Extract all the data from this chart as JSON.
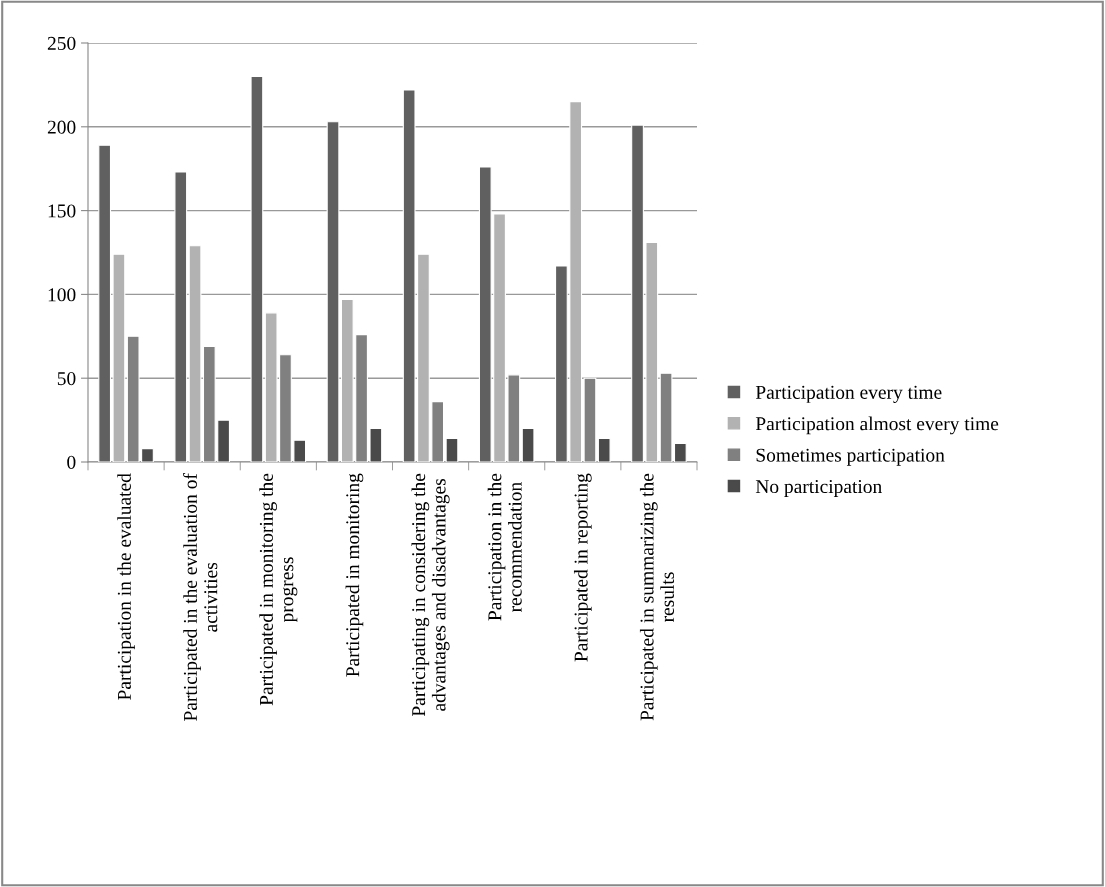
{
  "chart_data": {
    "type": "bar",
    "categories": [
      "Participation in the evaluated",
      "Participated in the evaluation of activities",
      "Participated in monitoring the progress",
      "Participated in monitoring",
      "Participating in considering the advantages and disadvantages",
      "Participation in the recommendation",
      "Participated in reporting",
      "Participated in summarizing the results"
    ],
    "series": [
      {
        "name": "Participation every time",
        "color": "#606060",
        "values": [
          189,
          173,
          230,
          203,
          222,
          176,
          117,
          201
        ]
      },
      {
        "name": "Participation almost every time",
        "color": "#b2b2b2",
        "values": [
          124,
          129,
          89,
          97,
          124,
          148,
          215,
          131
        ]
      },
      {
        "name": "Sometimes participation",
        "color": "#808080",
        "values": [
          75,
          69,
          64,
          76,
          36,
          52,
          50,
          53
        ]
      },
      {
        "name": "No participation",
        "color": "#4a4a4a",
        "values": [
          8,
          25,
          13,
          20,
          14,
          20,
          14,
          11
        ]
      }
    ],
    "ylim": [
      0,
      250
    ],
    "yticks": [
      0,
      50,
      100,
      150,
      200,
      250
    ],
    "grid": "y",
    "legend": "right"
  }
}
